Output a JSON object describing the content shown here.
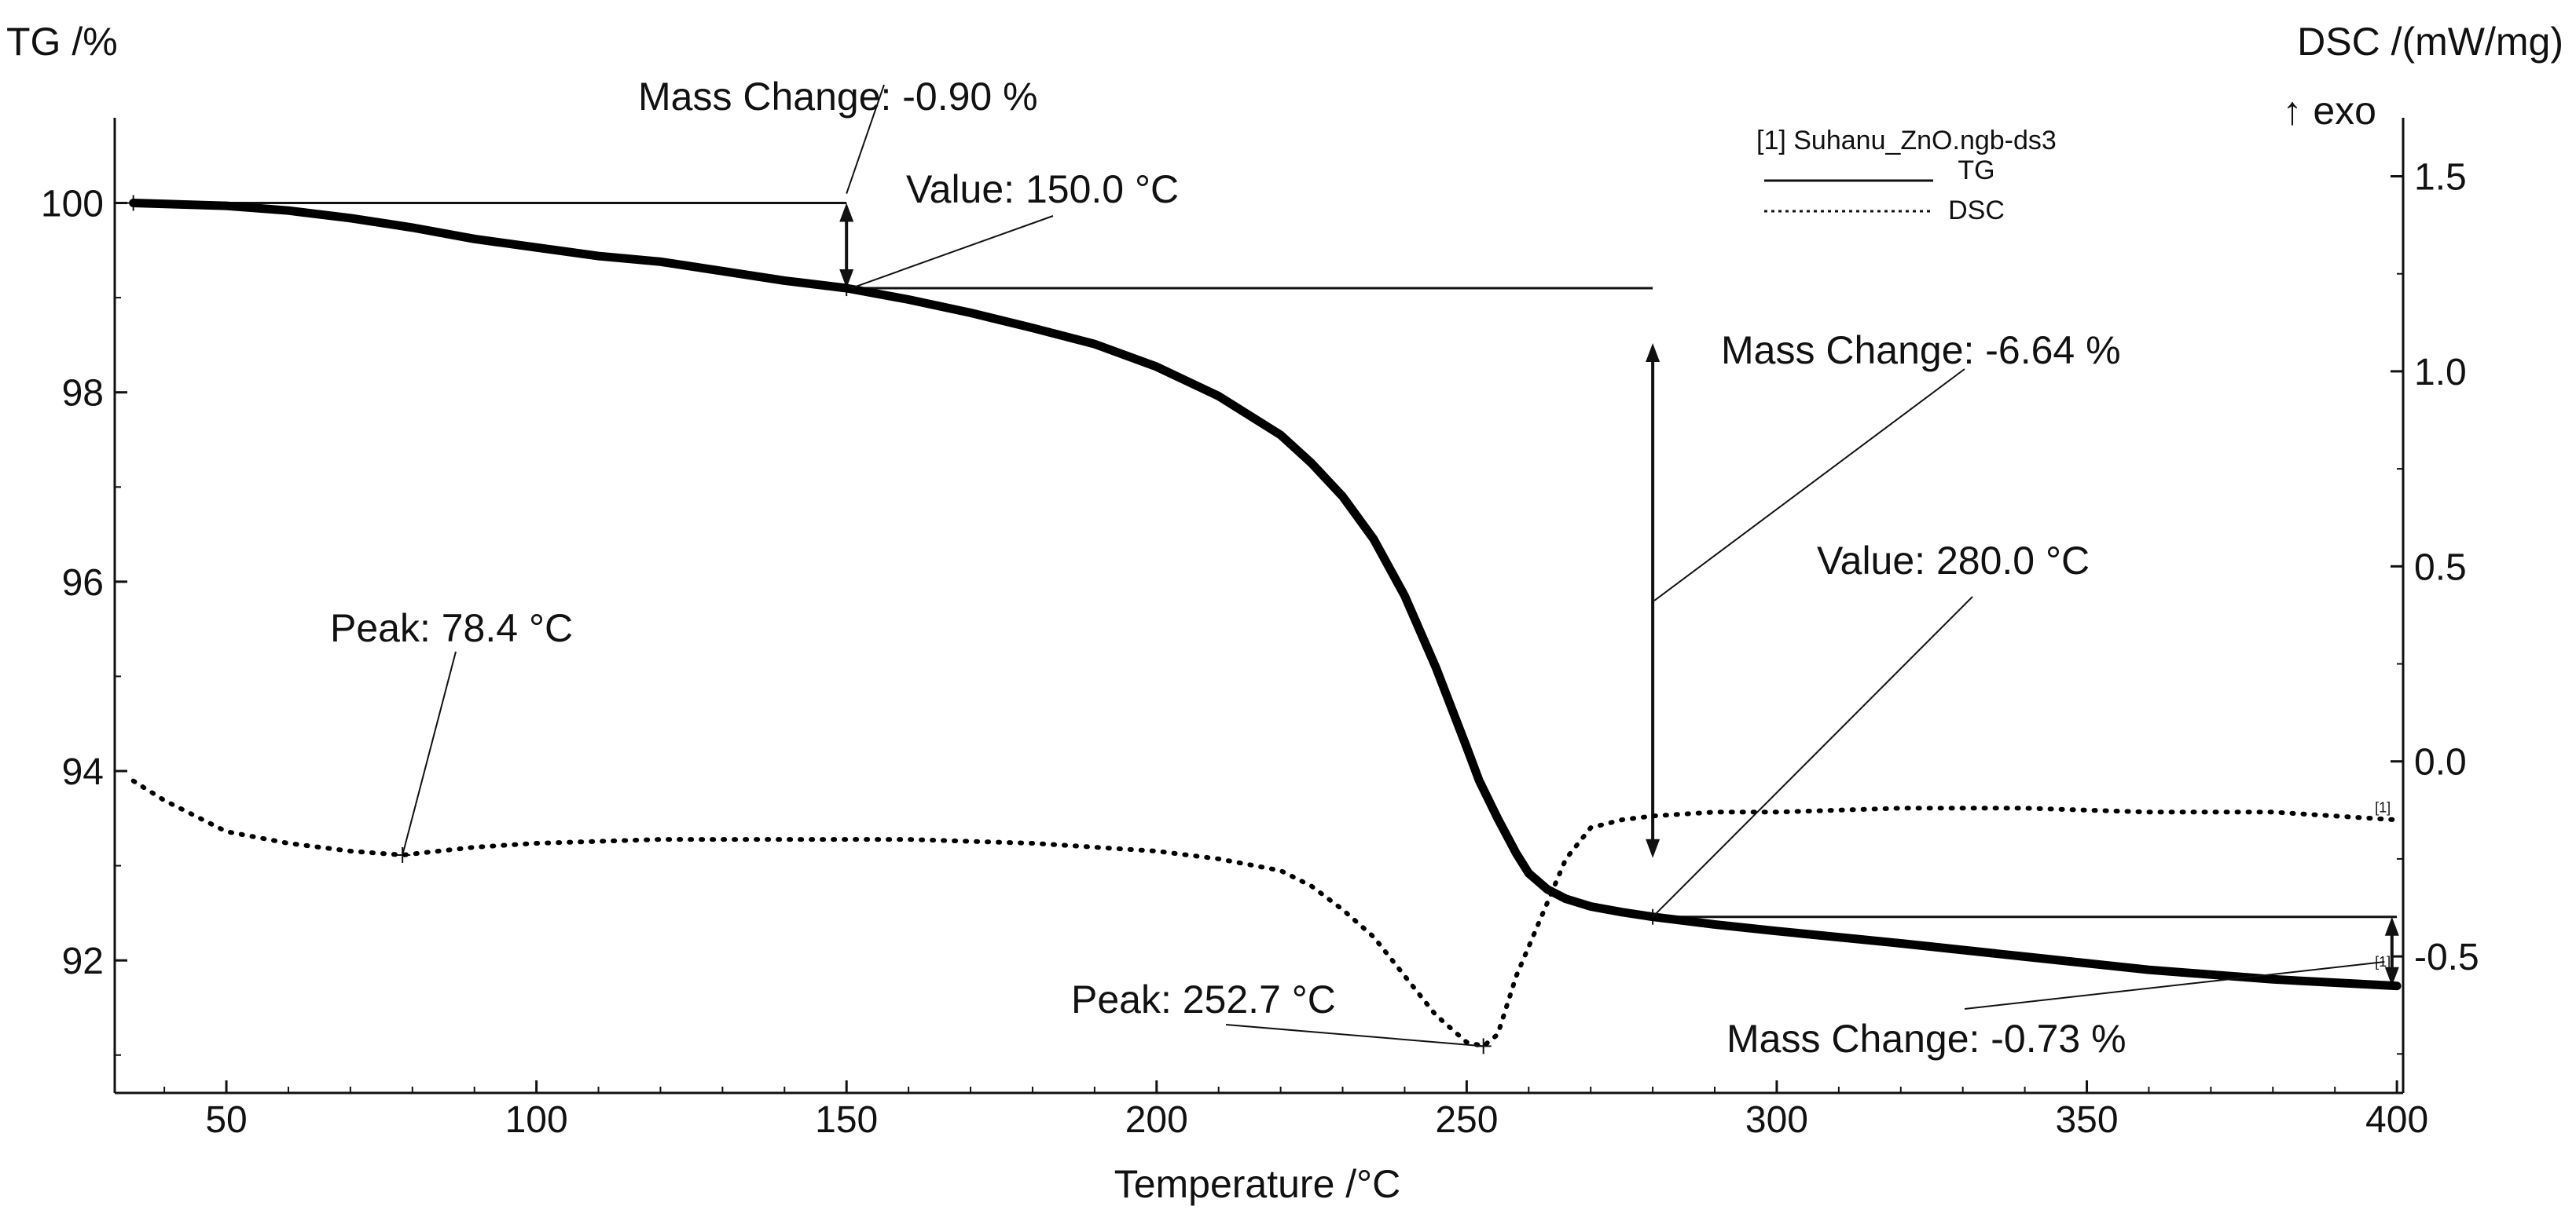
{
  "chart_data": {
    "type": "line",
    "title": "",
    "xlabel": "Temperature /°C",
    "ylabel_left": "TG /%",
    "ylabel_right": "DSC /(mW/mg)",
    "exo_label": "↑ exo",
    "xlim": [
      32,
      401
    ],
    "ylim_left": [
      90.6,
      100.9
    ],
    "ylim_right": [
      -0.85,
      1.65
    ],
    "x_ticks": [
      50,
      100,
      150,
      200,
      250,
      300,
      350,
      400
    ],
    "y_left_ticks": [
      92,
      94,
      96,
      98,
      100
    ],
    "y_right_ticks": [
      -0.5,
      0.0,
      0.5,
      1.0,
      1.5
    ],
    "y_right_tick_labels": [
      "-0.5",
      "0.0",
      "0.5",
      "1.0",
      "1.5"
    ],
    "legend": {
      "file": "[1] Suhanu_ZnO.ngb-ds3",
      "entries": [
        "TG",
        "DSC"
      ]
    },
    "series": [
      {
        "name": "TG",
        "axis": "left",
        "style": "solid-thick",
        "x": [
          35,
          50,
          60,
          70,
          80,
          90,
          100,
          110,
          120,
          130,
          140,
          150,
          160,
          170,
          180,
          190,
          200,
          210,
          220,
          225,
          230,
          235,
          240,
          245,
          250,
          252,
          255,
          258,
          260,
          263,
          266,
          270,
          275,
          280,
          290,
          300,
          320,
          340,
          360,
          380,
          400
        ],
        "values": [
          100.0,
          99.97,
          99.92,
          99.84,
          99.74,
          99.62,
          99.53,
          99.44,
          99.38,
          99.28,
          99.18,
          99.1,
          98.98,
          98.84,
          98.68,
          98.51,
          98.27,
          97.96,
          97.55,
          97.25,
          96.9,
          96.45,
          95.85,
          95.1,
          94.25,
          93.9,
          93.5,
          93.13,
          92.92,
          92.75,
          92.65,
          92.57,
          92.51,
          92.46,
          92.38,
          92.31,
          92.18,
          92.04,
          91.9,
          91.8,
          91.73
        ]
      },
      {
        "name": "DSC",
        "axis": "right",
        "style": "dotted",
        "x": [
          35,
          40,
          50,
          60,
          70,
          78.4,
          90,
          100,
          120,
          140,
          160,
          180,
          200,
          210,
          220,
          225,
          230,
          235,
          240,
          245,
          250,
          252.7,
          255,
          258,
          262,
          266,
          270,
          275,
          280,
          290,
          300,
          320,
          340,
          360,
          380,
          400
        ],
        "values": [
          -0.05,
          -0.1,
          -0.18,
          -0.21,
          -0.23,
          -0.24,
          -0.22,
          -0.21,
          -0.2,
          -0.2,
          -0.2,
          -0.21,
          -0.23,
          -0.25,
          -0.28,
          -0.32,
          -0.38,
          -0.45,
          -0.55,
          -0.65,
          -0.72,
          -0.73,
          -0.7,
          -0.55,
          -0.4,
          -0.25,
          -0.17,
          -0.15,
          -0.14,
          -0.13,
          -0.13,
          -0.12,
          -0.12,
          -0.13,
          -0.13,
          -0.15
        ]
      }
    ],
    "annotations": [
      {
        "kind": "mass_change",
        "text": "Mass Change: -0.90 %",
        "x": 150,
        "from": 100.0,
        "to": 99.1
      },
      {
        "kind": "value",
        "text": "Value: 150.0 °C",
        "x": 150,
        "y": 99.1
      },
      {
        "kind": "mass_change",
        "text": "Mass Change: -6.64 %",
        "x": 280,
        "from": 99.1,
        "to": 92.46
      },
      {
        "kind": "value",
        "text": "Value: 280.0 °C",
        "x": 280,
        "y": 92.46
      },
      {
        "kind": "mass_change",
        "text": "Mass Change: -0.73 %",
        "x": 400,
        "from": 92.46,
        "to": 91.73
      },
      {
        "kind": "peak",
        "text": "Peak: 78.4 °C",
        "x": 78.4,
        "y_dsc": -0.24
      },
      {
        "kind": "peak",
        "text": "Peak: 252.7 °C",
        "x": 252.7,
        "y_dsc": -0.73
      }
    ],
    "curve_marker": "[1]"
  }
}
